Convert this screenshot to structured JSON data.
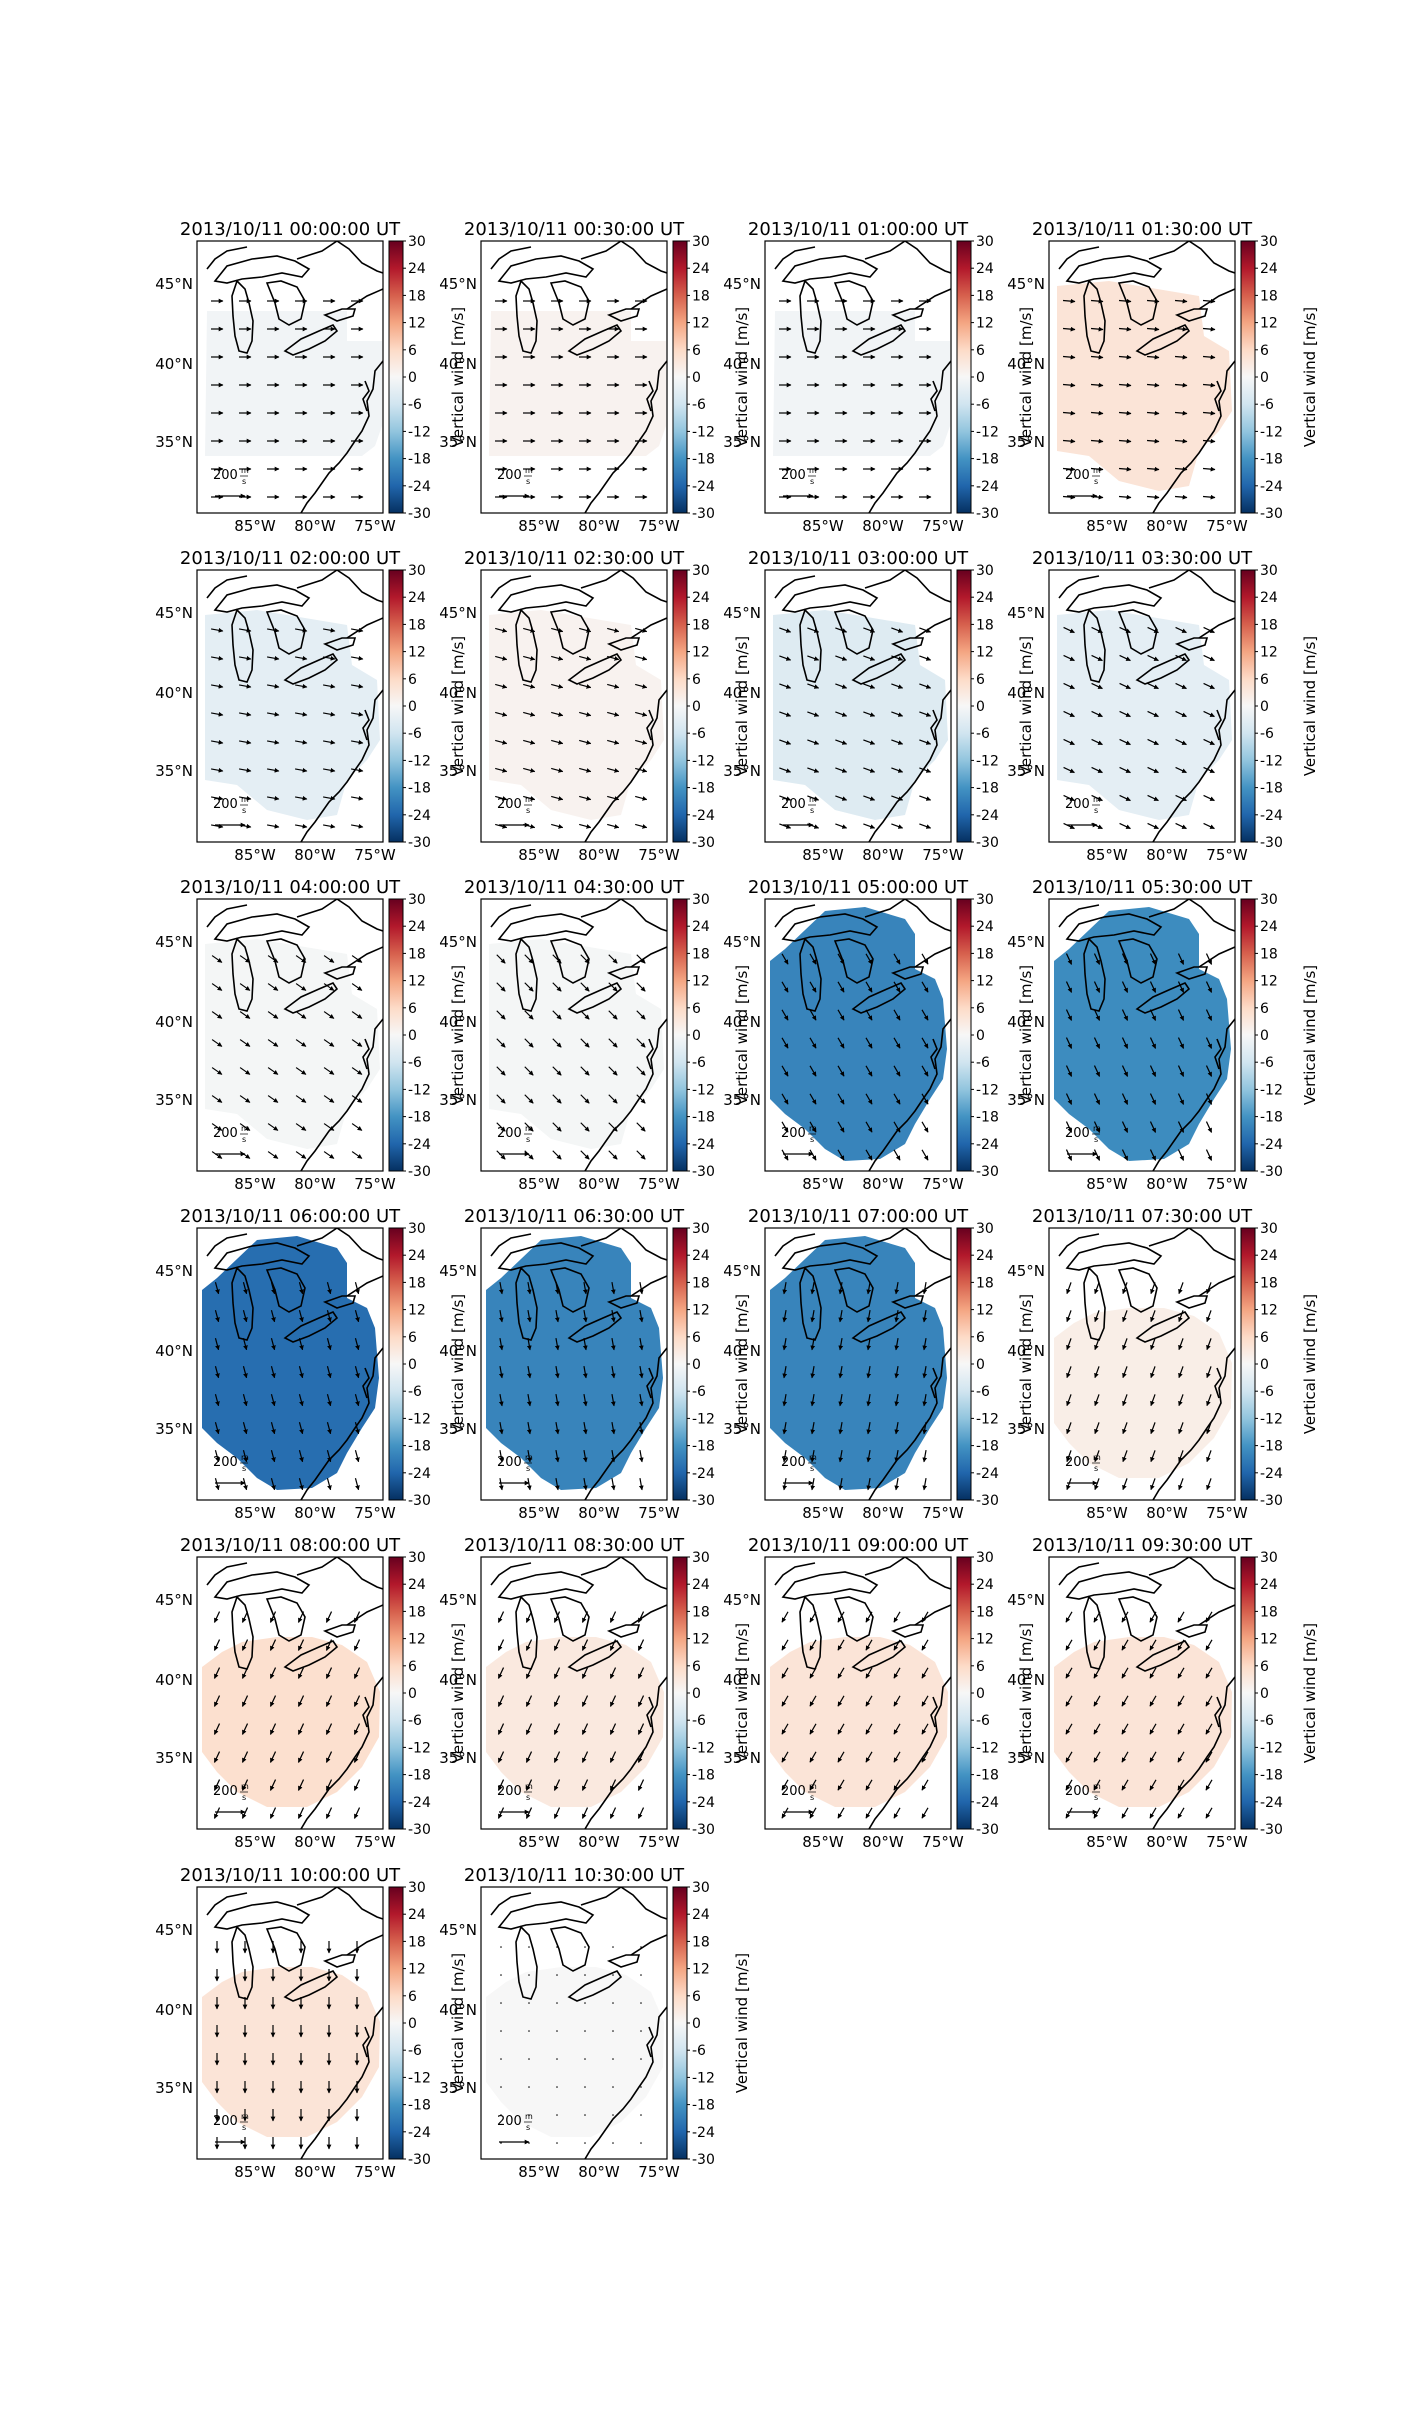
{
  "figure": {
    "colorbar_label": "Vertical wind [m/s]",
    "colorbar_ticks": [
      30,
      24,
      18,
      12,
      6,
      0,
      -6,
      -12,
      -18,
      -24,
      -30
    ],
    "colorbar_range": [
      -30,
      30
    ],
    "lon_ticks": [
      "85°W",
      "80°W",
      "75°W"
    ],
    "lat_ticks": [
      "45°N",
      "40°N",
      "35°N"
    ],
    "reference_arrow": {
      "value": 200,
      "unit_num": "m",
      "unit_den": "s"
    },
    "colormap": "RdBu_r",
    "grid": false
  },
  "panels": [
    {
      "title": "2013/10/11 00:00:00 UT",
      "vertical_wind": -1,
      "region": "small",
      "arrow_dir": 90
    },
    {
      "title": "2013/10/11 00:30:00 UT",
      "vertical_wind": 1,
      "region": "small",
      "arrow_dir": 90
    },
    {
      "title": "2013/10/11 01:00:00 UT",
      "vertical_wind": -1,
      "region": "small",
      "arrow_dir": 90
    },
    {
      "title": "2013/10/11 01:30:00 UT",
      "vertical_wind": 4,
      "region": "medium",
      "arrow_dir": 95
    },
    {
      "title": "2013/10/11 02:00:00 UT",
      "vertical_wind": -3,
      "region": "medium",
      "arrow_dir": 100
    },
    {
      "title": "2013/10/11 02:30:00 UT",
      "vertical_wind": 1,
      "region": "medium",
      "arrow_dir": 105
    },
    {
      "title": "2013/10/11 03:00:00 UT",
      "vertical_wind": -4,
      "region": "medium",
      "arrow_dir": 110
    },
    {
      "title": "2013/10/11 03:30:00 UT",
      "vertical_wind": -3,
      "region": "medium",
      "arrow_dir": 115
    },
    {
      "title": "2013/10/11 04:00:00 UT",
      "vertical_wind": -0.5,
      "region": "medium",
      "arrow_dir": 125
    },
    {
      "title": "2013/10/11 04:30:00 UT",
      "vertical_wind": -0.5,
      "region": "medium",
      "arrow_dir": 135
    },
    {
      "title": "2013/10/11 05:00:00 UT",
      "vertical_wind": -20,
      "region": "large",
      "arrow_dir": 150
    },
    {
      "title": "2013/10/11 05:30:00 UT",
      "vertical_wind": -19,
      "region": "large",
      "arrow_dir": 155
    },
    {
      "title": "2013/10/11 06:00:00 UT",
      "vertical_wind": -23,
      "region": "large",
      "arrow_dir": 165
    },
    {
      "title": "2013/10/11 06:30:00 UT",
      "vertical_wind": -20,
      "region": "large",
      "arrow_dir": 170
    },
    {
      "title": "2013/10/11 07:00:00 UT",
      "vertical_wind": -20,
      "region": "large",
      "arrow_dir": 190
    },
    {
      "title": "2013/10/11 07:30:00 UT",
      "vertical_wind": 2,
      "region": "south",
      "arrow_dir": 200
    },
    {
      "title": "2013/10/11 08:00:00 UT",
      "vertical_wind": 5,
      "region": "south",
      "arrow_dir": 205
    },
    {
      "title": "2013/10/11 08:30:00 UT",
      "vertical_wind": 3,
      "region": "south",
      "arrow_dir": 205
    },
    {
      "title": "2013/10/11 09:00:00 UT",
      "vertical_wind": 4,
      "region": "south",
      "arrow_dir": 210
    },
    {
      "title": "2013/10/11 09:30:00 UT",
      "vertical_wind": 4,
      "region": "south",
      "arrow_dir": 210
    },
    {
      "title": "2013/10/11 10:00:00 UT",
      "vertical_wind": 4,
      "region": "south",
      "arrow_dir": 180
    },
    {
      "title": "2013/10/11 10:30:00 UT",
      "vertical_wind": 0,
      "region": "south",
      "arrow_dir": 0
    }
  ]
}
